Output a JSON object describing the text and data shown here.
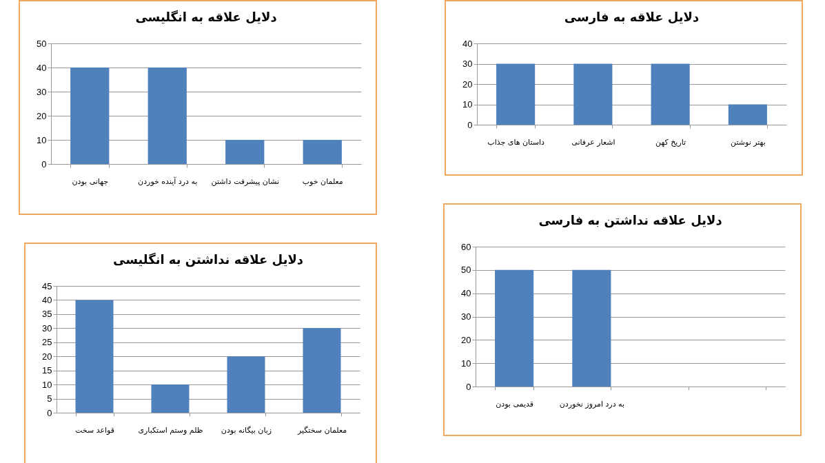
{
  "chart_data": [
    {
      "type": "bar",
      "title": "دلایل علاقه به انگلیسی",
      "categories": [
        "جهانی بودن",
        "به درد آینده خوردن",
        "نشان پیشرفت داشتن",
        "معلمان خوب"
      ],
      "values": [
        40,
        40,
        10,
        10
      ],
      "color": "#4f81bd",
      "ylim": [
        0,
        50
      ],
      "yticks": [
        0,
        10,
        20,
        30,
        40,
        50
      ],
      "grid": "y"
    },
    {
      "type": "bar",
      "title": "دلایل علاقه به فارسی",
      "categories": [
        "داستان های جذاب",
        "اشعار عرفانی",
        "تاریخ کهن",
        "بهتر نوشتن"
      ],
      "values": [
        30,
        30,
        30,
        10
      ],
      "color": "#4f81bd",
      "ylim": [
        0,
        40
      ],
      "yticks": [
        0,
        10,
        20,
        30,
        40
      ],
      "grid": "y"
    },
    {
      "type": "bar",
      "title": "دلایل علاقه نداشتن به انگلیسی",
      "categories": [
        "قواعد سخت",
        "ظلم وستم استکباری",
        "زبان بیگانه بودن",
        "معلمان سختگیر"
      ],
      "values": [
        40,
        10,
        20,
        30
      ],
      "color": "#4f81bd",
      "ylim": [
        0,
        45
      ],
      "yticks": [
        0,
        5,
        10,
        15,
        20,
        25,
        30,
        35,
        40,
        45
      ],
      "grid": "y"
    },
    {
      "type": "bar",
      "title": "دلایل علاقه نداشتن به فارسی",
      "categories": [
        "قدیمی بودن",
        "به درد امروز نخوردن",
        null,
        null
      ],
      "values": [
        50,
        50,
        null,
        null
      ],
      "color": "#4f81bd",
      "ylim": [
        0,
        60
      ],
      "yticks": [
        0,
        10,
        20,
        30,
        40,
        50,
        60
      ],
      "grid": "y"
    }
  ]
}
